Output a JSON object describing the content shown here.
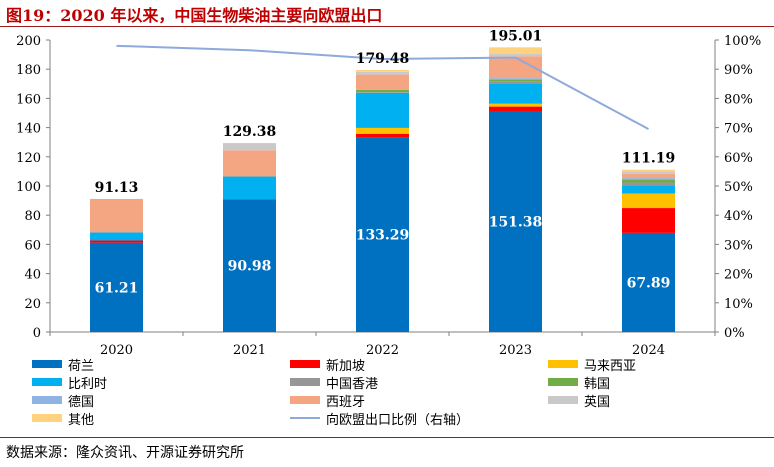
{
  "title": "图19：2020 年以来，中国生物柴油主要向欧盟出口",
  "source": "数据来源：隆众资讯、开源证券研究所",
  "chart_data": {
    "type": "bar",
    "stacked": true,
    "categories": [
      "2020",
      "2021",
      "2022",
      "2023",
      "2024"
    ],
    "ylim": [
      0,
      200
    ],
    "yticks": [
      0,
      20,
      40,
      60,
      80,
      100,
      120,
      140,
      160,
      180,
      200
    ],
    "y2lim": [
      0,
      1
    ],
    "y2ticks": [
      "0%",
      "10%",
      "20%",
      "30%",
      "40%",
      "50%",
      "60%",
      "70%",
      "80%",
      "90%",
      "100%"
    ],
    "grid": false,
    "legend_position": "bottom",
    "series": [
      {
        "name": "荷兰",
        "color": "#0070C0",
        "values": [
          61.21,
          90.98,
          133.29,
          151.38,
          67.89
        ]
      },
      {
        "name": "新加坡",
        "color": "#FF0000",
        "values": [
          1.5,
          0,
          2.5,
          3.0,
          17.0
        ]
      },
      {
        "name": "马来西亚",
        "color": "#FFC000",
        "values": [
          0,
          0,
          4.0,
          2.0,
          10.0
        ]
      },
      {
        "name": "比利时",
        "color": "#00B0F0",
        "values": [
          5.5,
          15.5,
          24.0,
          14.0,
          5.5
        ]
      },
      {
        "name": "中国香港",
        "color": "#969696",
        "values": [
          0,
          0,
          0.5,
          1.0,
          2.0
        ]
      },
      {
        "name": "韩国",
        "color": "#70AD47",
        "values": [
          0,
          0,
          1.5,
          1.5,
          2.0
        ]
      },
      {
        "name": "德国",
        "color": "#8EB4E3",
        "values": [
          0,
          0,
          0.5,
          1.0,
          1.0
        ]
      },
      {
        "name": "西班牙",
        "color": "#F4A582",
        "values": [
          22.92,
          18.0,
          10.0,
          15.0,
          3.0
        ]
      },
      {
        "name": "英国",
        "color": "#C9C9C9",
        "values": [
          0,
          4.9,
          2.0,
          1.5,
          1.5
        ]
      },
      {
        "name": "其他",
        "color": "#FFD27F",
        "values": [
          0,
          0,
          1.19,
          4.62,
          1.3
        ]
      }
    ],
    "totals": [
      91.13,
      129.38,
      179.48,
      195.01,
      111.19
    ],
    "line": {
      "name": "向欧盟出口比例（右轴）",
      "color": "#8EA9DB",
      "axis": "right",
      "values": [
        0.98,
        0.965,
        0.935,
        0.94,
        0.695
      ]
    }
  }
}
